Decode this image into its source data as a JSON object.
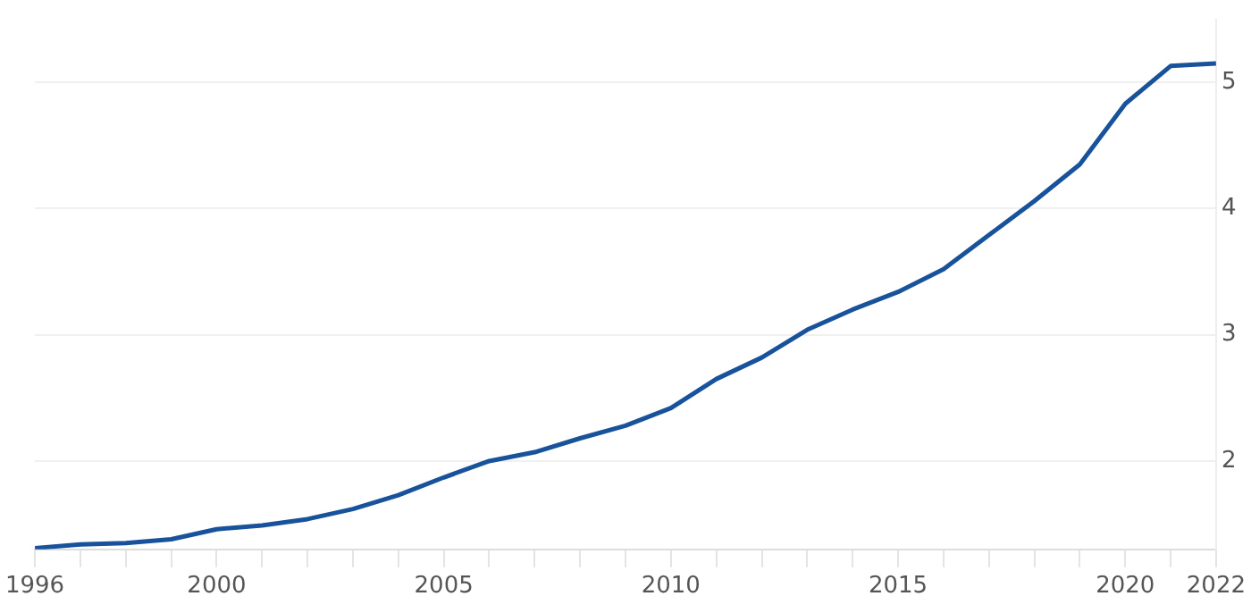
{
  "chart_data": {
    "type": "line",
    "x": [
      1996,
      1997,
      1998,
      1999,
      2000,
      2001,
      2002,
      2003,
      2004,
      2005,
      2006,
      2007,
      2008,
      2009,
      2010,
      2011,
      2012,
      2013,
      2014,
      2015,
      2016,
      2017,
      2018,
      2019,
      2020,
      2021,
      2022
    ],
    "series": [
      {
        "color": "#17529b",
        "values": [
          1.31,
          1.34,
          1.35,
          1.38,
          1.46,
          1.49,
          1.54,
          1.62,
          1.73,
          1.87,
          2.0,
          2.07,
          2.18,
          2.28,
          2.42,
          2.65,
          2.82,
          3.04,
          3.2,
          3.34,
          3.52,
          3.79,
          4.06,
          4.35,
          4.83,
          5.13,
          5.15
        ]
      }
    ],
    "xlim": [
      1996,
      2022
    ],
    "xticks": [
      1996,
      {
        "value": 1997,
        "label": null
      },
      {
        "value": 1998,
        "label": null
      },
      {
        "value": 1999,
        "label": null
      },
      2000,
      {
        "value": 2001,
        "label": null
      },
      {
        "value": 2002,
        "label": null
      },
      {
        "value": 2003,
        "label": null
      },
      {
        "value": 2004,
        "label": null
      },
      2005,
      {
        "value": 2006,
        "label": null
      },
      {
        "value": 2007,
        "label": null
      },
      {
        "value": 2008,
        "label": null
      },
      {
        "value": 2009,
        "label": null
      },
      2010,
      {
        "value": 2011,
        "label": null
      },
      {
        "value": 2012,
        "label": null
      },
      {
        "value": 2013,
        "label": null
      },
      {
        "value": 2014,
        "label": null
      },
      2015,
      {
        "value": 2016,
        "label": null
      },
      {
        "value": 2017,
        "label": null
      },
      {
        "value": 2018,
        "label": null
      },
      {
        "value": 2019,
        "label": null
      },
      2020,
      {
        "value": 2021,
        "label": null
      },
      2022
    ],
    "ylim": [
      1.3,
      5.5
    ],
    "yticks": [
      2,
      3,
      4,
      5
    ],
    "grid": "y",
    "marker": "none",
    "line_style": "solid",
    "legend": false
  }
}
